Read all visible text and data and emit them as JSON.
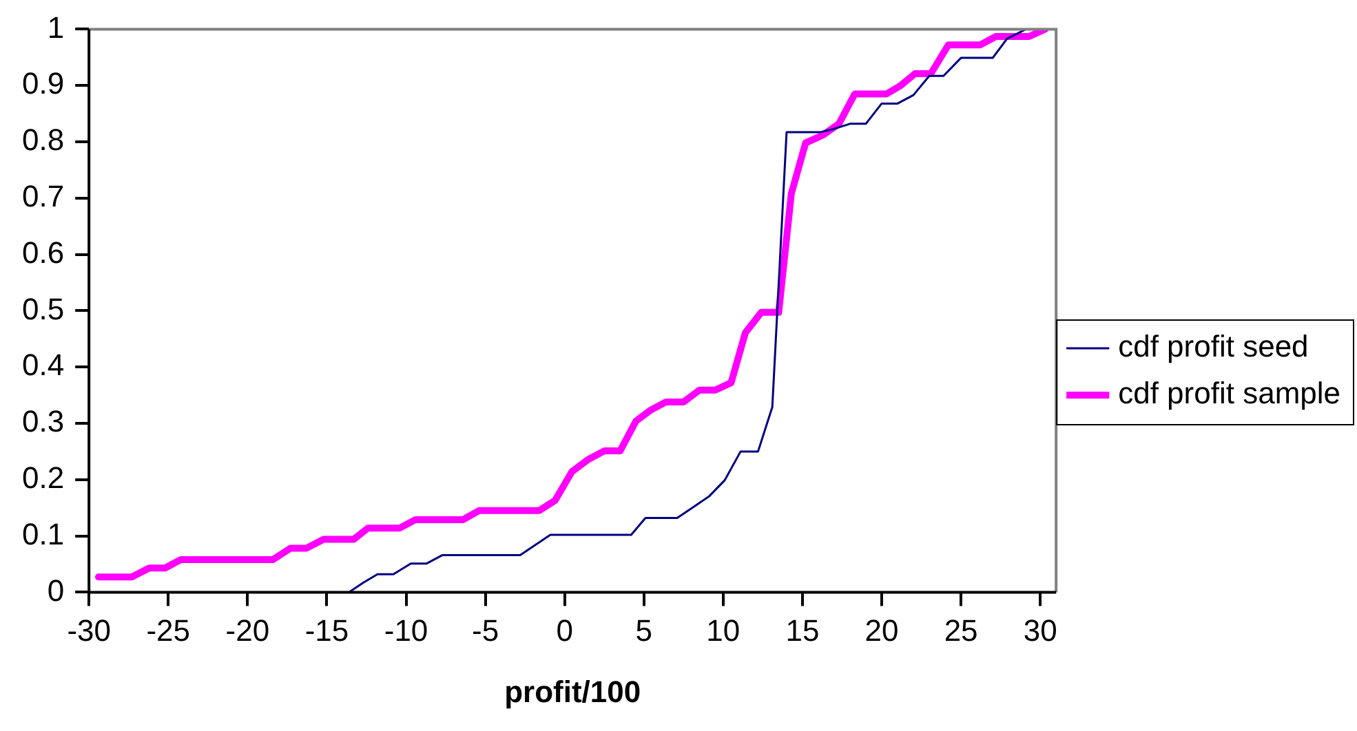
{
  "chart_data": {
    "type": "line",
    "xlabel": "profit/100",
    "xlim": [
      -30,
      31
    ],
    "xticks": [
      -30,
      -25,
      -20,
      -15,
      -10,
      -5,
      0,
      5,
      10,
      15,
      20,
      25,
      30
    ],
    "ylim": [
      0,
      1
    ],
    "yticks": [
      0,
      0.1,
      0.2,
      0.3,
      0.4,
      0.5,
      0.6,
      0.7,
      0.8,
      0.9,
      1
    ],
    "grid": false,
    "legend": "right",
    "marker": "none",
    "line_style": "solid",
    "series": [
      {
        "name": "cdf profit seed",
        "color": "#000080",
        "x": [
          -13.6,
          -12.7,
          -11.8,
          -10.8,
          -9.7,
          -8.7,
          -7.7,
          -2.8,
          -1.9,
          -0.9,
          4.2,
          5.1,
          7.1,
          8.1,
          9.1,
          10.1,
          11.1,
          12.2,
          13.1,
          14.0,
          16.1,
          17.0,
          18.0,
          19.0,
          20.0,
          21.0,
          22.0,
          23.0,
          23.9,
          25.0,
          27.0,
          27.9,
          29.1
        ],
        "values": [
          0,
          0.017,
          0.032,
          0.032,
          0.051,
          0.051,
          0.066,
          0.066,
          0.083,
          0.102,
          0.102,
          0.132,
          0.132,
          0.151,
          0.17,
          0.199,
          0.25,
          0.25,
          0.329,
          0.817,
          0.817,
          0.823,
          0.832,
          0.832,
          0.868,
          0.868,
          0.883,
          0.917,
          0.917,
          0.949,
          0.949,
          0.983,
          1
        ]
      },
      {
        "name": "cdf profit sample",
        "color": "#ff00ff",
        "x": [
          -29.4,
          -27.3,
          -26.2,
          -25.2,
          -24.2,
          -18.4,
          -17.3,
          -16.3,
          -15.2,
          -13.3,
          -12.4,
          -10.4,
          -9.4,
          -6.4,
          -5.4,
          -1.6,
          -0.6,
          0.46,
          1.5,
          2.5,
          3.5,
          4.5,
          5.4,
          6.4,
          7.5,
          8.5,
          9.5,
          10.5,
          11.4,
          12.4,
          13.5,
          14.3,
          15.2,
          16.3,
          17.3,
          18.3,
          20.3,
          21.2,
          22.1,
          23.1,
          24.2,
          26.2,
          27.2,
          29.3,
          30.3
        ],
        "values": [
          0.027,
          0.027,
          0.043,
          0.043,
          0.058,
          0.058,
          0.078,
          0.078,
          0.094,
          0.094,
          0.114,
          0.114,
          0.129,
          0.129,
          0.145,
          0.145,
          0.163,
          0.214,
          0.236,
          0.251,
          0.251,
          0.304,
          0.323,
          0.338,
          0.338,
          0.359,
          0.359,
          0.372,
          0.461,
          0.497,
          0.497,
          0.708,
          0.798,
          0.812,
          0.832,
          0.885,
          0.885,
          0.9,
          0.921,
          0.921,
          0.972,
          0.972,
          0.987,
          0.987,
          1
        ]
      }
    ]
  }
}
